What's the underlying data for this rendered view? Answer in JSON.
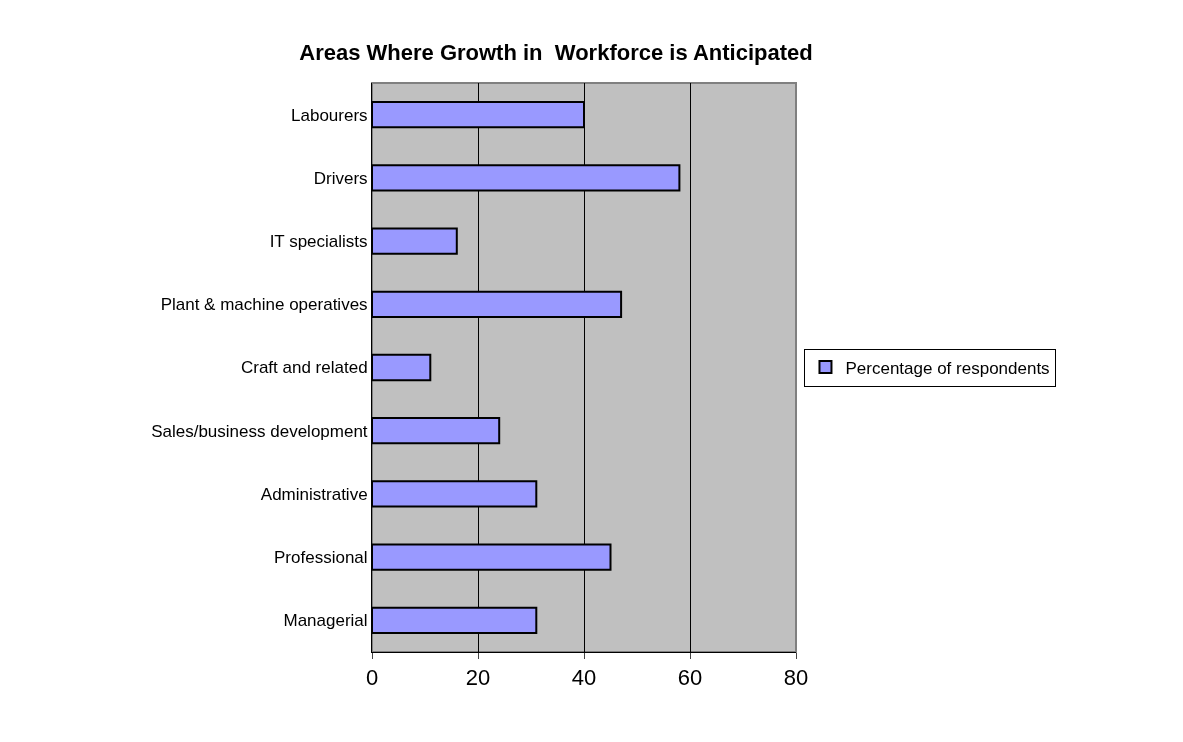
{
  "chart_data": {
    "type": "bar",
    "orientation": "horizontal",
    "title": "Areas Where Growth in  Workforce is Anticipated",
    "categories": [
      "Labourers",
      "Drivers",
      "IT specialists",
      "Plant & machine operatives",
      "Craft and related",
      "Sales/business development",
      "Administrative",
      "Professional",
      "Managerial"
    ],
    "series": [
      {
        "name": "Percentage of respondents",
        "color": "#9999ff",
        "values": [
          40,
          58,
          16,
          47,
          11,
          24,
          31,
          45,
          31
        ]
      }
    ],
    "xlim": [
      0,
      80
    ],
    "xticks": [
      0,
      20,
      40,
      60,
      80
    ],
    "grid": "x",
    "legend": "right"
  }
}
